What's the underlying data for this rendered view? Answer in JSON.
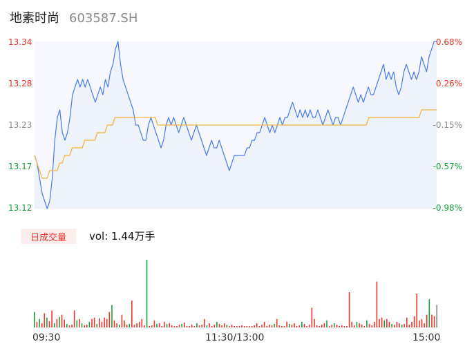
{
  "header": {
    "name": "地素时尚",
    "code": "603587.SH"
  },
  "colors": {
    "up": "#e8352c",
    "down": "#1a9e3f",
    "flat": "#888888",
    "price": "#4b7be5",
    "avg": "#f2b43a"
  },
  "volume": {
    "tab_label": "日成交量",
    "text": "vol: 1.44万手"
  },
  "chart_data": {
    "type": "line",
    "title": "",
    "x_labels": [
      "09:30",
      "11:30/13:00",
      "15:00"
    ],
    "prev_close": 13.25,
    "y_left_ticks": [
      "13.34",
      "13.28",
      "13.23",
      "13.17",
      "13.12"
    ],
    "y_right_ticks": [
      "0.68%",
      "0.26%",
      "-0.15%",
      "-0.57%",
      "-0.98%"
    ],
    "ylim": [
      13.12,
      13.34
    ],
    "series": [
      {
        "values": [
          13.19,
          13.18,
          13.16,
          13.14,
          13.13,
          13.12,
          13.13,
          13.16,
          13.21,
          13.24,
          13.25,
          13.22,
          13.21,
          13.22,
          13.24,
          13.27,
          13.28,
          13.29,
          13.28,
          13.29,
          13.28,
          13.29,
          13.28,
          13.27,
          13.26,
          13.27,
          13.28,
          13.27,
          13.29,
          13.28,
          13.3,
          13.31,
          13.33,
          13.34,
          13.31,
          13.29,
          13.28,
          13.27,
          13.26,
          13.25,
          13.23,
          13.23,
          13.22,
          13.21,
          13.21,
          13.23,
          13.24,
          13.23,
          13.22,
          13.21,
          13.2,
          13.21,
          13.23,
          13.24,
          13.23,
          13.24,
          13.23,
          13.22,
          13.23,
          13.24,
          13.23,
          13.22,
          13.21,
          13.22,
          13.23,
          13.22,
          13.21,
          13.2,
          13.19,
          13.2,
          13.21,
          13.2,
          13.2,
          13.21,
          13.2,
          13.19,
          13.18,
          13.17,
          13.18,
          13.19,
          13.19,
          13.19,
          13.19,
          13.19,
          13.2,
          13.2,
          13.21,
          13.21,
          13.22,
          13.22,
          13.23,
          13.24,
          13.23,
          13.22,
          13.23,
          13.22,
          13.23,
          13.24,
          13.23,
          13.24,
          13.24,
          13.25,
          13.26,
          13.25,
          13.24,
          13.25,
          13.24,
          13.25,
          13.24,
          13.25,
          13.24,
          13.24,
          13.25,
          13.24,
          13.23,
          13.24,
          13.25,
          13.24,
          13.23,
          13.24,
          13.24,
          13.23,
          13.24,
          13.25,
          13.26,
          13.27,
          13.28,
          13.27,
          13.26,
          13.27,
          13.26,
          13.27,
          13.28,
          13.27,
          13.27,
          13.28,
          13.29,
          13.3,
          13.31,
          13.29,
          13.3,
          13.29,
          13.3,
          13.28,
          13.27,
          13.28,
          13.3,
          13.31,
          13.3,
          13.29,
          13.3,
          13.29,
          13.3,
          13.32,
          13.31,
          13.3,
          13.32,
          13.33,
          13.34,
          13.34
        ],
        "color": "#4b7be5"
      },
      {
        "values": [
          13.19,
          13.18,
          13.17,
          13.16,
          13.16,
          13.16,
          13.17,
          13.17,
          13.17,
          13.17,
          13.18,
          13.18,
          13.19,
          13.19,
          13.19,
          13.2,
          13.2,
          13.2,
          13.2,
          13.2,
          13.21,
          13.21,
          13.21,
          13.21,
          13.21,
          13.22,
          13.22,
          13.22,
          13.22,
          13.23,
          13.23,
          13.23,
          13.24,
          13.24,
          13.24,
          13.24,
          13.24,
          13.24,
          13.24,
          13.24,
          13.24,
          13.24,
          13.24,
          13.24,
          13.24,
          13.24,
          13.24,
          13.24,
          13.24,
          13.23,
          13.23,
          13.23,
          13.23,
          13.23,
          13.23,
          13.23,
          13.23,
          13.23,
          13.23,
          13.23,
          13.23,
          13.23,
          13.23,
          13.23,
          13.23,
          13.23,
          13.23,
          13.23,
          13.23,
          13.23,
          13.23,
          13.23,
          13.23,
          13.23,
          13.23,
          13.23,
          13.23,
          13.23,
          13.23,
          13.23,
          13.23,
          13.23,
          13.23,
          13.23,
          13.23,
          13.23,
          13.23,
          13.23,
          13.23,
          13.23,
          13.23,
          13.23,
          13.23,
          13.23,
          13.23,
          13.23,
          13.23,
          13.23,
          13.23,
          13.23,
          13.23,
          13.23,
          13.23,
          13.23,
          13.23,
          13.23,
          13.23,
          13.23,
          13.23,
          13.23,
          13.23,
          13.23,
          13.23,
          13.23,
          13.23,
          13.23,
          13.23,
          13.23,
          13.23,
          13.23,
          13.23,
          13.23,
          13.23,
          13.23,
          13.23,
          13.23,
          13.23,
          13.23,
          13.23,
          13.23,
          13.23,
          13.23,
          13.23,
          13.24,
          13.24,
          13.24,
          13.24,
          13.24,
          13.24,
          13.24,
          13.24,
          13.24,
          13.24,
          13.24,
          13.24,
          13.24,
          13.24,
          13.24,
          13.24,
          13.24,
          13.24,
          13.24,
          13.24,
          13.24,
          13.25,
          13.25,
          13.25,
          13.25,
          13.25,
          13.25,
          13.25
        ],
        "color": "#f2b43a"
      }
    ],
    "volume_bars": [
      {
        "v": 22,
        "c": "down"
      },
      {
        "v": 8,
        "c": "up"
      },
      {
        "v": 12,
        "c": "down"
      },
      {
        "v": 6,
        "c": "up"
      },
      {
        "v": 20,
        "c": "up"
      },
      {
        "v": 14,
        "c": "down"
      },
      {
        "v": 9,
        "c": "up"
      },
      {
        "v": 24,
        "c": "up"
      },
      {
        "v": 6,
        "c": "down"
      },
      {
        "v": 12,
        "c": "up"
      },
      {
        "v": 15,
        "c": "down"
      },
      {
        "v": 18,
        "c": "up"
      },
      {
        "v": 11,
        "c": "up"
      },
      {
        "v": 5,
        "c": "down"
      },
      {
        "v": 3,
        "c": "up"
      },
      {
        "v": 4,
        "c": "up"
      },
      {
        "v": 24,
        "c": "up"
      },
      {
        "v": 10,
        "c": "down"
      },
      {
        "v": 12,
        "c": "up"
      },
      {
        "v": 6,
        "c": "down"
      },
      {
        "v": 3,
        "c": "up"
      },
      {
        "v": 4,
        "c": "up"
      },
      {
        "v": 8,
        "c": "down"
      },
      {
        "v": 12,
        "c": "up"
      },
      {
        "v": 14,
        "c": "up"
      },
      {
        "v": 5,
        "c": "down"
      },
      {
        "v": 13,
        "c": "up"
      },
      {
        "v": 8,
        "c": "up"
      },
      {
        "v": 14,
        "c": "up"
      },
      {
        "v": 12,
        "c": "up"
      },
      {
        "v": 22,
        "c": "up"
      },
      {
        "v": 32,
        "c": "down"
      },
      {
        "v": 10,
        "c": "up"
      },
      {
        "v": 6,
        "c": "up"
      },
      {
        "v": 4,
        "c": "down"
      },
      {
        "v": 18,
        "c": "up"
      },
      {
        "v": 10,
        "c": "up"
      },
      {
        "v": 4,
        "c": "up"
      },
      {
        "v": 5,
        "c": "down"
      },
      {
        "v": 38,
        "c": "up"
      },
      {
        "v": 4,
        "c": "up"
      },
      {
        "v": 6,
        "c": "up"
      },
      {
        "v": 8,
        "c": "up"
      },
      {
        "v": 12,
        "c": "up"
      },
      {
        "v": 3,
        "c": "up"
      },
      {
        "v": 96,
        "c": "down"
      },
      {
        "v": 2,
        "c": "up"
      },
      {
        "v": 3,
        "c": "up"
      },
      {
        "v": 10,
        "c": "up"
      },
      {
        "v": 5,
        "c": "down"
      },
      {
        "v": 6,
        "c": "up"
      },
      {
        "v": 2,
        "c": "up"
      },
      {
        "v": 8,
        "c": "up"
      },
      {
        "v": 5,
        "c": "down"
      },
      {
        "v": 6,
        "c": "up"
      },
      {
        "v": 3,
        "c": "up"
      },
      {
        "v": 2,
        "c": "up"
      },
      {
        "v": 2,
        "c": "up"
      },
      {
        "v": 4,
        "c": "up"
      },
      {
        "v": 5,
        "c": "down"
      },
      {
        "v": 7,
        "c": "up"
      },
      {
        "v": 2,
        "c": "up"
      },
      {
        "v": 2,
        "c": "up"
      },
      {
        "v": 4,
        "c": "up"
      },
      {
        "v": 2,
        "c": "up"
      },
      {
        "v": 6,
        "c": "down"
      },
      {
        "v": 3,
        "c": "up"
      },
      {
        "v": 4,
        "c": "up"
      },
      {
        "v": 12,
        "c": "up"
      },
      {
        "v": 3,
        "c": "down"
      },
      {
        "v": 6,
        "c": "up"
      },
      {
        "v": 2,
        "c": "up"
      },
      {
        "v": 4,
        "c": "up"
      },
      {
        "v": 8,
        "c": "down"
      },
      {
        "v": 5,
        "c": "up"
      },
      {
        "v": 3,
        "c": "up"
      },
      {
        "v": 6,
        "c": "up"
      },
      {
        "v": 4,
        "c": "down"
      },
      {
        "v": 2,
        "c": "up"
      },
      {
        "v": 4,
        "c": "up"
      },
      {
        "v": 2,
        "c": "up"
      },
      {
        "v": 2,
        "c": "up"
      },
      {
        "v": 2,
        "c": "up"
      },
      {
        "v": 3,
        "c": "up"
      },
      {
        "v": 2,
        "c": "up"
      },
      {
        "v": 2,
        "c": "up"
      },
      {
        "v": 2,
        "c": "up"
      },
      {
        "v": 2,
        "c": "up"
      },
      {
        "v": 3,
        "c": "up"
      },
      {
        "v": 6,
        "c": "up"
      },
      {
        "v": 2,
        "c": "up"
      },
      {
        "v": 4,
        "c": "up"
      },
      {
        "v": 8,
        "c": "up"
      },
      {
        "v": 2,
        "c": "up"
      },
      {
        "v": 4,
        "c": "up"
      },
      {
        "v": 3,
        "c": "up"
      },
      {
        "v": 5,
        "c": "down"
      },
      {
        "v": 12,
        "c": "up"
      },
      {
        "v": 3,
        "c": "up"
      },
      {
        "v": 2,
        "c": "up"
      },
      {
        "v": 2,
        "c": "up"
      },
      {
        "v": 8,
        "c": "up"
      },
      {
        "v": 5,
        "c": "down"
      },
      {
        "v": 4,
        "c": "up"
      },
      {
        "v": 6,
        "c": "up"
      },
      {
        "v": 2,
        "c": "up"
      },
      {
        "v": 3,
        "c": "up"
      },
      {
        "v": 8,
        "c": "down"
      },
      {
        "v": 5,
        "c": "up"
      },
      {
        "v": 2,
        "c": "up"
      },
      {
        "v": 4,
        "c": "up"
      },
      {
        "v": 28,
        "c": "up"
      },
      {
        "v": 12,
        "c": "up"
      },
      {
        "v": 3,
        "c": "up"
      },
      {
        "v": 2,
        "c": "up"
      },
      {
        "v": 4,
        "c": "up"
      },
      {
        "v": 6,
        "c": "up"
      },
      {
        "v": 10,
        "c": "down"
      },
      {
        "v": 2,
        "c": "up"
      },
      {
        "v": 4,
        "c": "up"
      },
      {
        "v": 6,
        "c": "down"
      },
      {
        "v": 4,
        "c": "up"
      },
      {
        "v": 2,
        "c": "up"
      },
      {
        "v": 3,
        "c": "up"
      },
      {
        "v": 2,
        "c": "up"
      },
      {
        "v": 2,
        "c": "up"
      },
      {
        "v": 50,
        "c": "up"
      },
      {
        "v": 8,
        "c": "up"
      },
      {
        "v": 3,
        "c": "up"
      },
      {
        "v": 8,
        "c": "down"
      },
      {
        "v": 6,
        "c": "up"
      },
      {
        "v": 4,
        "c": "up"
      },
      {
        "v": 2,
        "c": "up"
      },
      {
        "v": 10,
        "c": "down"
      },
      {
        "v": 5,
        "c": "up"
      },
      {
        "v": 3,
        "c": "up"
      },
      {
        "v": 8,
        "c": "up"
      },
      {
        "v": 65,
        "c": "up"
      },
      {
        "v": 12,
        "c": "up"
      },
      {
        "v": 14,
        "c": "up"
      },
      {
        "v": 10,
        "c": "down"
      },
      {
        "v": 12,
        "c": "up"
      },
      {
        "v": 8,
        "c": "up"
      },
      {
        "v": 5,
        "c": "down"
      },
      {
        "v": 4,
        "c": "up"
      },
      {
        "v": 8,
        "c": "up"
      },
      {
        "v": 6,
        "c": "up"
      },
      {
        "v": 4,
        "c": "down"
      },
      {
        "v": 5,
        "c": "up"
      },
      {
        "v": 14,
        "c": "up"
      },
      {
        "v": 4,
        "c": "up"
      },
      {
        "v": 8,
        "c": "up"
      },
      {
        "v": 16,
        "c": "up"
      },
      {
        "v": 48,
        "c": "up"
      },
      {
        "v": 10,
        "c": "up"
      },
      {
        "v": 12,
        "c": "up"
      },
      {
        "v": 6,
        "c": "up"
      },
      {
        "v": 18,
        "c": "up"
      },
      {
        "v": 40,
        "c": "down"
      },
      {
        "v": 18,
        "c": "up"
      },
      {
        "v": 16,
        "c": "up"
      },
      {
        "v": 32,
        "c": "flat"
      }
    ]
  }
}
